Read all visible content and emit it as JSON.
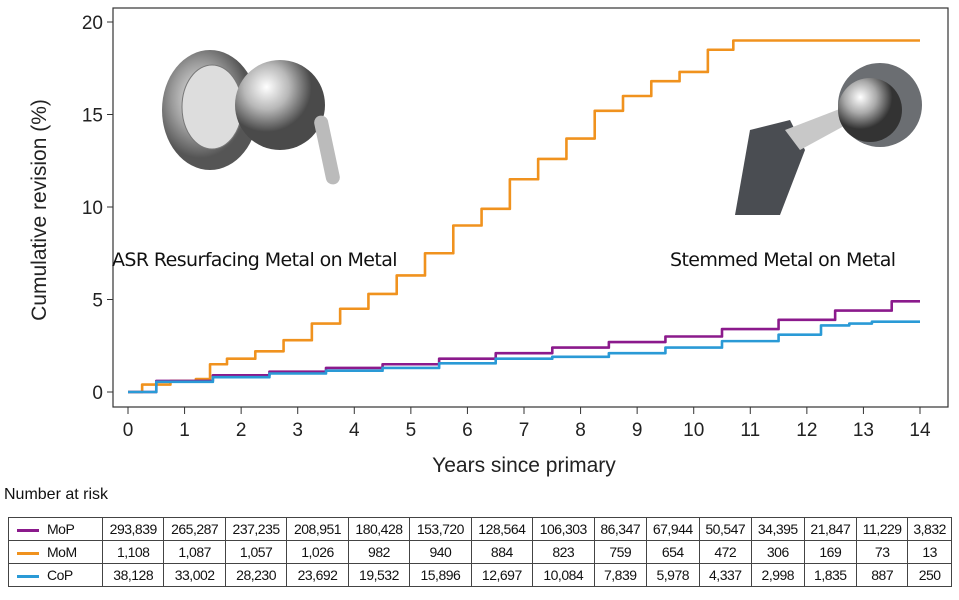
{
  "chart_data": {
    "type": "line",
    "title": "",
    "xlabel": "Years since primary",
    "ylabel": "Cumulative revision (%)",
    "xlim": [
      0,
      14
    ],
    "ylim": [
      0,
      20
    ],
    "xticks": [
      "0",
      "1",
      "2",
      "3",
      "4",
      "5",
      "6",
      "7",
      "8",
      "9",
      "10",
      "11",
      "12",
      "13",
      "14"
    ],
    "yticks": [
      "0",
      "5",
      "10",
      "15",
      "20"
    ],
    "grid": false,
    "series": [
      {
        "name": "MoM",
        "color": "#f0921e",
        "x": [
          0,
          0.5,
          1,
          1.4,
          1.5,
          2,
          2.5,
          3,
          3.5,
          4,
          4.5,
          5,
          5.5,
          6,
          6.5,
          7,
          7.5,
          8,
          8.5,
          9,
          9.5,
          10,
          10.5,
          10.9,
          14
        ],
        "y": [
          0,
          0.4,
          0.6,
          0.7,
          1.5,
          1.8,
          2.2,
          2.8,
          3.7,
          4.5,
          5.3,
          6.3,
          7.5,
          9.0,
          9.9,
          11.5,
          12.6,
          13.7,
          15.2,
          16.0,
          16.8,
          17.3,
          18.5,
          19.0,
          19.0
        ]
      },
      {
        "name": "MoP",
        "color": "#8b1a8c",
        "x": [
          0,
          1,
          2,
          3,
          4,
          5,
          6,
          7,
          8,
          9,
          10,
          11,
          12,
          13,
          14
        ],
        "y": [
          0,
          0.6,
          0.9,
          1.1,
          1.3,
          1.5,
          1.8,
          2.1,
          2.4,
          2.7,
          3.0,
          3.4,
          3.9,
          4.4,
          4.9
        ]
      },
      {
        "name": "CoP",
        "color": "#2a9ad6",
        "x": [
          0,
          1,
          2,
          3,
          4,
          5,
          6,
          7,
          8,
          9,
          10,
          11,
          12,
          12.5,
          13,
          13.3,
          14
        ],
        "y": [
          0,
          0.55,
          0.8,
          1.0,
          1.15,
          1.3,
          1.55,
          1.8,
          1.9,
          2.1,
          2.4,
          2.75,
          3.1,
          3.6,
          3.7,
          3.8,
          3.8
        ]
      }
    ],
    "annotations": [
      "ASR Resurfacing Metal on Metal",
      "Stemmed Metal on Metal"
    ]
  },
  "risk_table": {
    "title": "Number at risk",
    "rows": [
      {
        "label": "MoP",
        "color": "#8b1a8c",
        "values": [
          "293,839",
          "265,287",
          "237,235",
          "208,951",
          "180,428",
          "153,720",
          "128,564",
          "106,303",
          "86,347",
          "67,944",
          "50,547",
          "34,395",
          "21,847",
          "11,229",
          "3,832"
        ]
      },
      {
        "label": "MoM",
        "color": "#f0921e",
        "values": [
          "1,108",
          "1,087",
          "1,057",
          "1,026",
          "982",
          "940",
          "884",
          "823",
          "759",
          "654",
          "472",
          "306",
          "169",
          "73",
          "13"
        ]
      },
      {
        "label": "CoP",
        "color": "#2a9ad6",
        "values": [
          "38,128",
          "33,002",
          "28,230",
          "23,692",
          "19,532",
          "15,896",
          "12,697",
          "10,084",
          "7,839",
          "5,978",
          "4,337",
          "2,998",
          "1,835",
          "887",
          "250"
        ]
      }
    ]
  }
}
